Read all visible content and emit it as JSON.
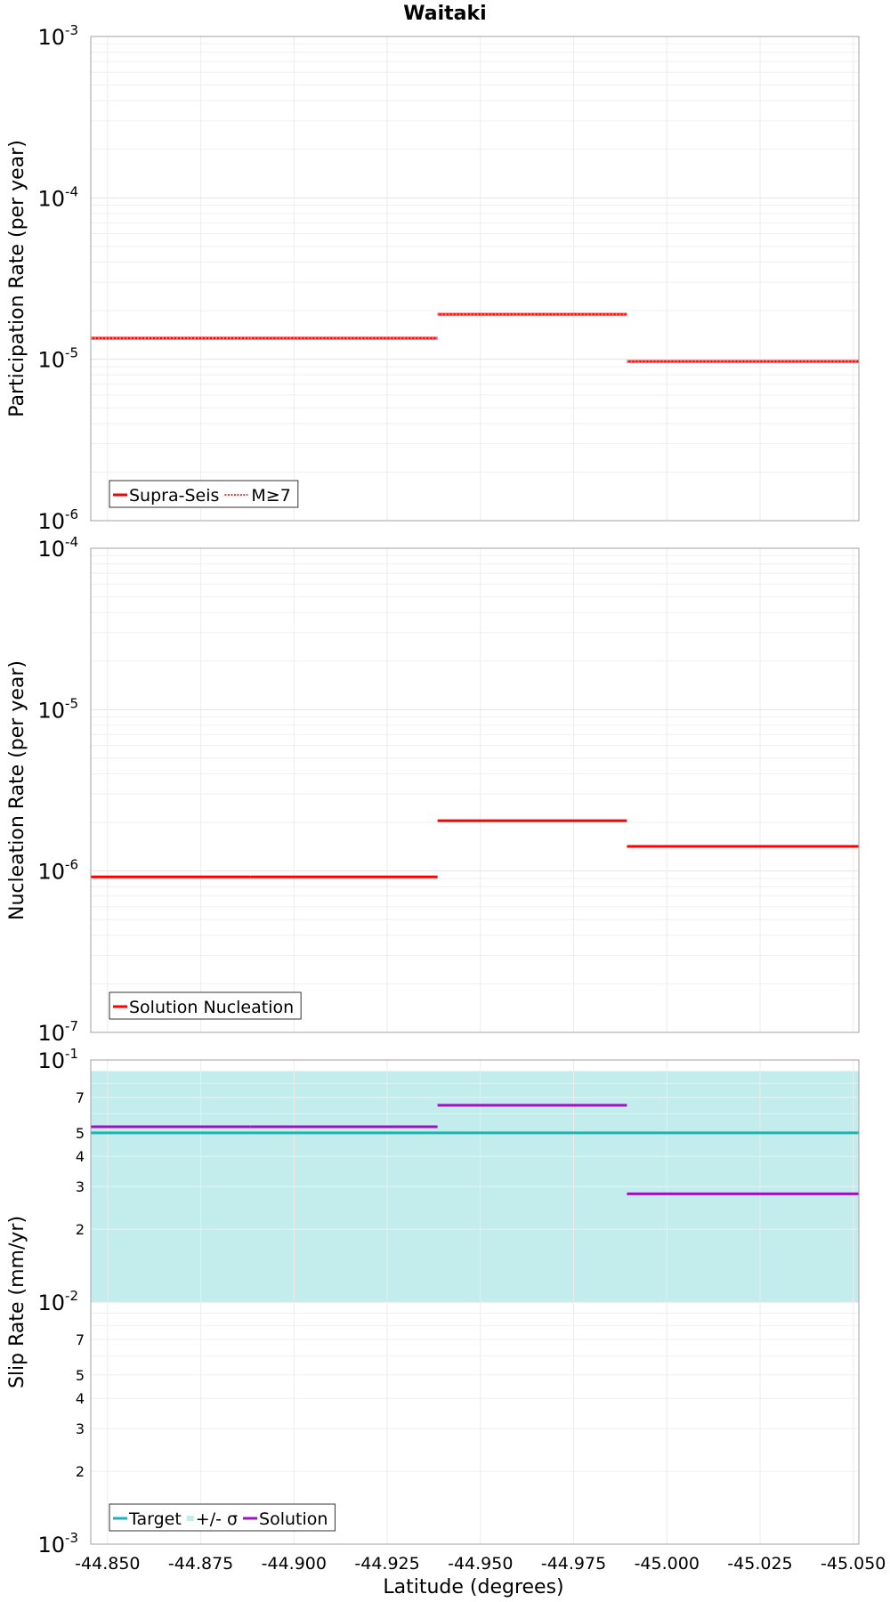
{
  "title": "Waitaki",
  "xlabel": "Latitude (degrees)",
  "x_ticks": [
    "-44.850",
    "-44.875",
    "-44.900",
    "-44.925",
    "-44.950",
    "-44.975",
    "-45.000",
    "-45.025",
    "-45.050"
  ],
  "chart_data": [
    {
      "type": "line",
      "panel": "participation",
      "ylabel": "Participation Rate (per year)",
      "yscale": "log",
      "ylim": [
        1e-06,
        0.001
      ],
      "xlim": [
        -44.8455,
        -45.0515
      ],
      "x_tick_values": [
        -44.85,
        -44.875,
        -44.9,
        -44.925,
        -44.95,
        -44.975,
        -45.0,
        -45.025,
        -45.05
      ],
      "y_major_ticks": [
        {
          "base": "10",
          "exp": "-6",
          "value": 1e-06
        },
        {
          "base": "10",
          "exp": "-5",
          "value": 1e-05
        },
        {
          "base": "10",
          "exp": "-4",
          "value": 0.0001
        },
        {
          "base": "10",
          "exp": "-3",
          "value": 0.001
        }
      ],
      "y_minor_ticks": [],
      "grid": true,
      "legend_position": "bottom-left",
      "series": [
        {
          "name": "Supra-Seis",
          "color": "#ff0000",
          "style": "solid",
          "segments": [
            [
              -44.8455,
              -44.8883,
              1.35e-05
            ],
            [
              -44.8883,
              -44.9385,
              1.35e-05
            ],
            [
              -44.9385,
              -44.9893,
              1.9e-05
            ],
            [
              -44.9893,
              -45.0515,
              9.7e-06
            ]
          ]
        },
        {
          "name": "M≥7",
          "color": "#ff0000",
          "style": "dotted",
          "segments": [
            [
              -44.8455,
              -44.8883,
              1.35e-05
            ],
            [
              -44.8883,
              -44.9385,
              1.35e-05
            ],
            [
              -44.9385,
              -44.9893,
              1.9e-05
            ],
            [
              -44.9893,
              -45.0515,
              9.7e-06
            ]
          ]
        }
      ],
      "bands": []
    },
    {
      "type": "line",
      "panel": "nucleation",
      "ylabel": "Nucleation Rate (per year)",
      "yscale": "log",
      "ylim": [
        1e-07,
        0.0001
      ],
      "xlim": [
        -44.8455,
        -45.0515
      ],
      "x_tick_values": [
        -44.85,
        -44.875,
        -44.9,
        -44.925,
        -44.95,
        -44.975,
        -45.0,
        -45.025,
        -45.05
      ],
      "y_major_ticks": [
        {
          "base": "10",
          "exp": "-7",
          "value": 1e-07
        },
        {
          "base": "10",
          "exp": "-6",
          "value": 1e-06
        },
        {
          "base": "10",
          "exp": "-5",
          "value": 1e-05
        },
        {
          "base": "10",
          "exp": "-4",
          "value": 0.0001
        }
      ],
      "y_minor_ticks": [],
      "grid": true,
      "legend_position": "bottom-left",
      "series": [
        {
          "name": "Solution Nucleation",
          "color": "#ff0000",
          "style": "solid",
          "segments": [
            [
              -44.8455,
              -44.8883,
              9.2e-07
            ],
            [
              -44.8883,
              -44.9385,
              9.2e-07
            ],
            [
              -44.9385,
              -44.9893,
              2.05e-06
            ],
            [
              -44.9893,
              -45.0515,
              1.42e-06
            ]
          ]
        }
      ],
      "bands": []
    },
    {
      "type": "line",
      "panel": "slip",
      "ylabel": "Slip Rate (mm/yr)",
      "yscale": "log",
      "ylim": [
        0.001,
        0.1
      ],
      "xlim": [
        -44.8455,
        -45.0515
      ],
      "x_tick_values": [
        -44.85,
        -44.875,
        -44.9,
        -44.925,
        -44.95,
        -44.975,
        -45.0,
        -45.025,
        -45.05
      ],
      "y_major_ticks": [
        {
          "base": "10",
          "exp": "-3",
          "value": 0.001
        },
        {
          "base": "10",
          "exp": "-2",
          "value": 0.01
        },
        {
          "base": "10",
          "exp": "-1",
          "value": 0.1
        }
      ],
      "y_minor_ticks": [
        {
          "label": "2",
          "value": 0.002
        },
        {
          "label": "3",
          "value": 0.003
        },
        {
          "label": "4",
          "value": 0.004
        },
        {
          "label": "5",
          "value": 0.005
        },
        {
          "label": "7",
          "value": 0.007
        },
        {
          "label": "2",
          "value": 0.02
        },
        {
          "label": "3",
          "value": 0.03
        },
        {
          "label": "4",
          "value": 0.04
        },
        {
          "label": "5",
          "value": 0.05
        },
        {
          "label": "7",
          "value": 0.07
        }
      ],
      "grid": true,
      "legend_position": "bottom-left",
      "series": [
        {
          "name": "Target",
          "color": "#1ab5b5",
          "style": "solid",
          "segments": [
            [
              -44.8455,
              -45.0515,
              0.05
            ]
          ]
        },
        {
          "name": "+/- σ",
          "color": "#c3ecec",
          "style": "band",
          "segments": []
        },
        {
          "name": "Solution",
          "color": "#a010c0",
          "style": "solid",
          "segments": [
            [
              -44.8455,
              -44.8883,
              0.053
            ],
            [
              -44.8883,
              -44.9385,
              0.053
            ],
            [
              -44.9385,
              -44.9893,
              0.065
            ],
            [
              -44.9893,
              -45.0515,
              0.028
            ]
          ]
        }
      ],
      "bands": [
        {
          "name": "+/- σ",
          "color": "#c3ecec",
          "x0": -44.8455,
          "x1": -45.0515,
          "low": 0.01,
          "high": 0.09
        }
      ]
    }
  ]
}
